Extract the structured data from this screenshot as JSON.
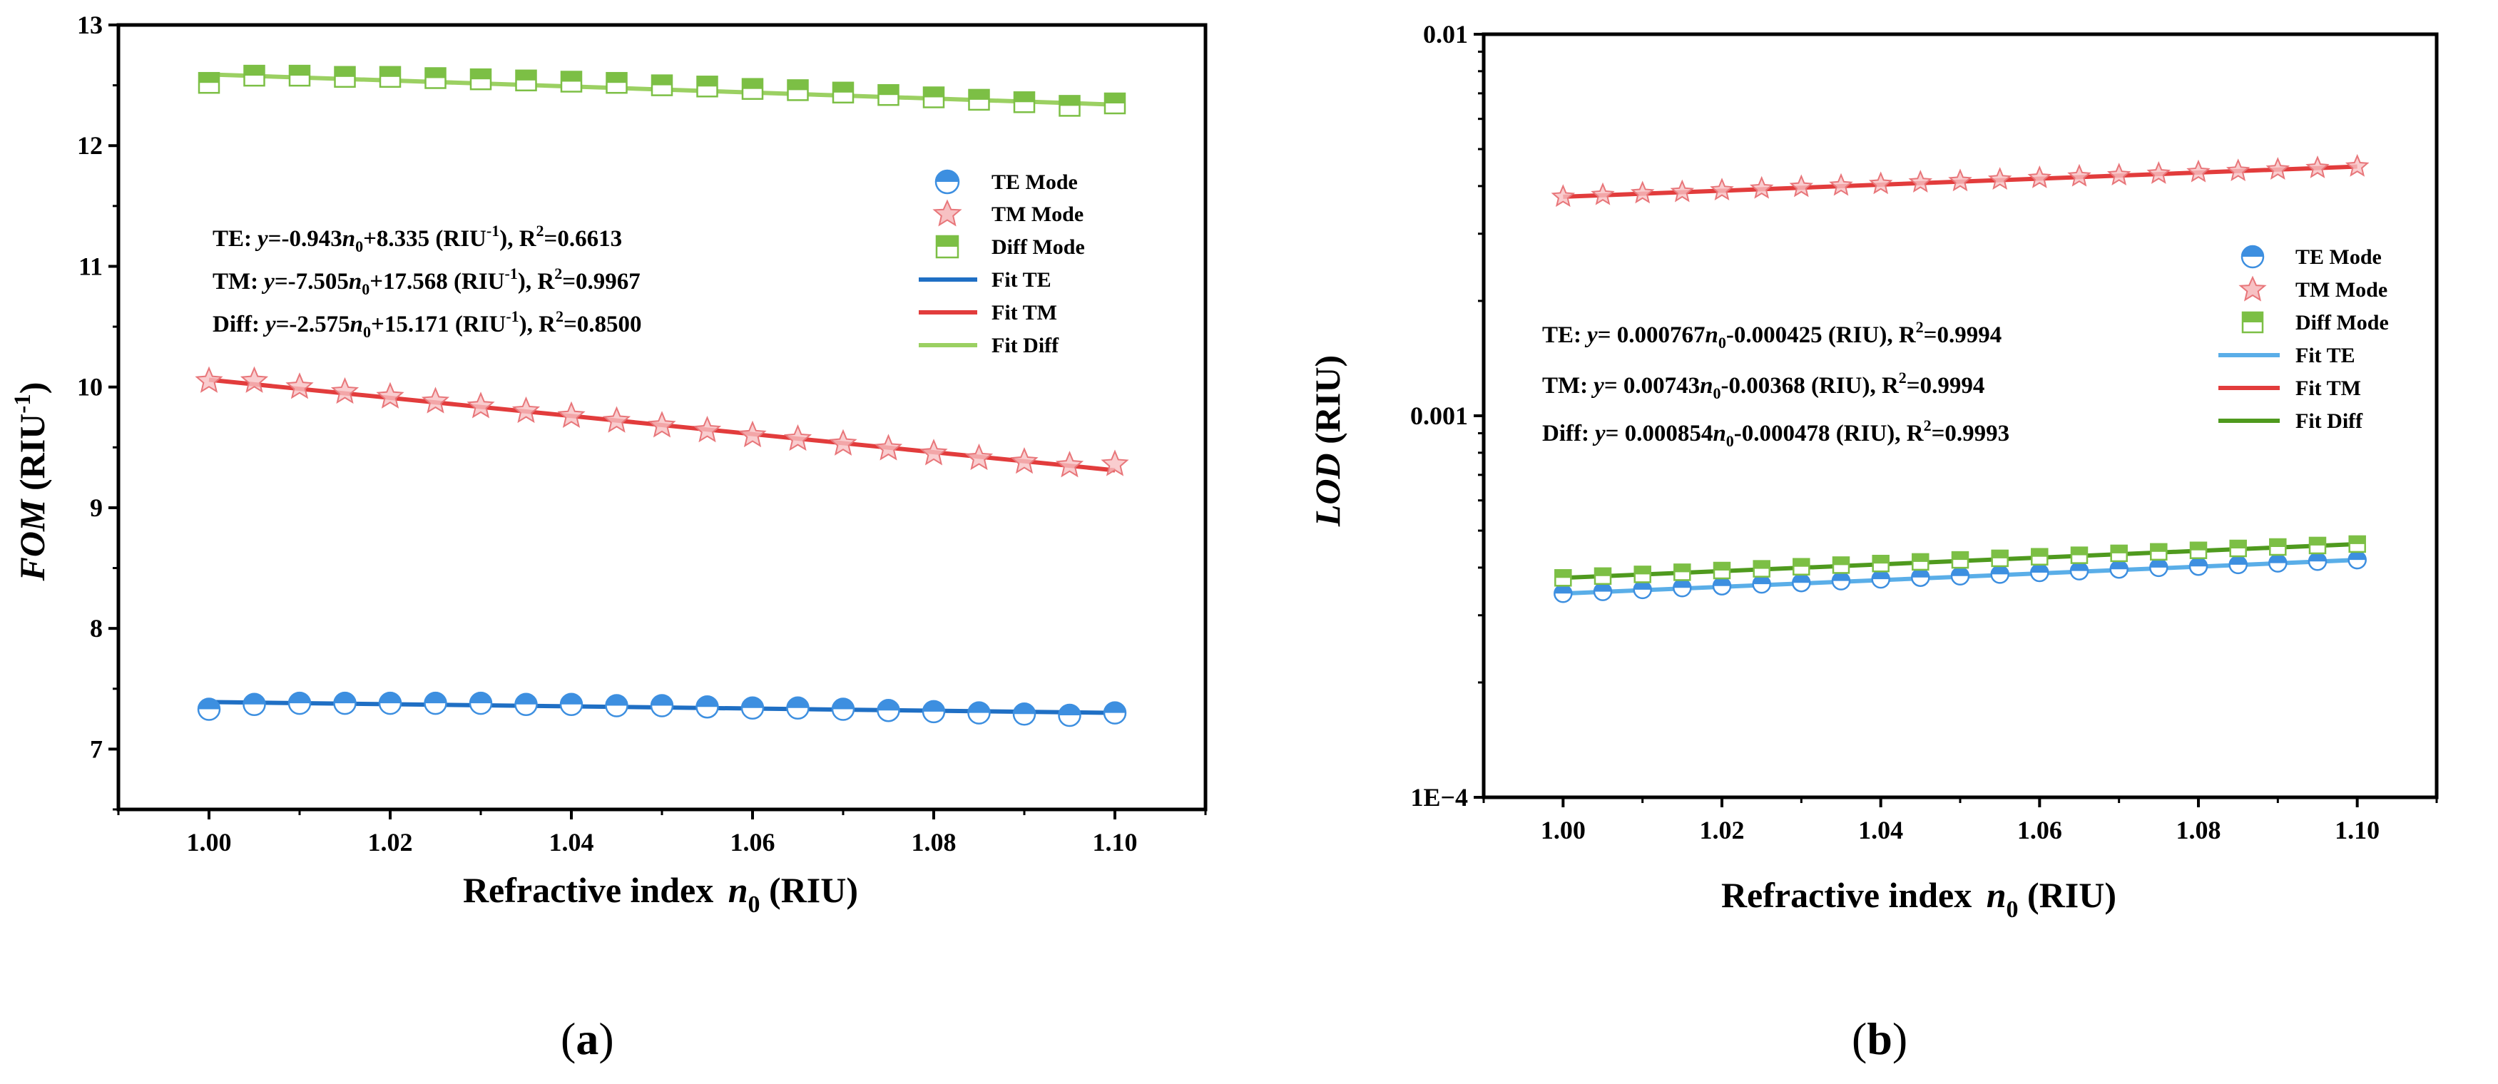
{
  "chart_data": [
    {
      "type": "scatter",
      "panel_label": "(a)",
      "panel_letter": "a",
      "xlabel": {
        "prefix": "Refractive index ",
        "var": "n",
        "sub": "0",
        "suffix": " (RIU)"
      },
      "ylabel": {
        "var": "FOM",
        "unit": " (RIU",
        "sup": "-1",
        "close": ")"
      },
      "xlim": [
        0.99,
        1.11
      ],
      "ylim": [
        6.5,
        13
      ],
      "yscale": "linear",
      "xticks": [
        1.0,
        1.02,
        1.04,
        1.06,
        1.08,
        1.1
      ],
      "xtick_labels": [
        "1.00",
        "1.02",
        "1.04",
        "1.06",
        "1.08",
        "1.10"
      ],
      "yticks": [
        7,
        8,
        9,
        10,
        11,
        12,
        13
      ],
      "ytick_labels": [
        "7",
        "8",
        "9",
        "10",
        "11",
        "12",
        "13"
      ],
      "x": [
        1.0,
        1.005,
        1.01,
        1.015,
        1.02,
        1.025,
        1.03,
        1.035,
        1.04,
        1.045,
        1.05,
        1.055,
        1.06,
        1.065,
        1.07,
        1.075,
        1.08,
        1.085,
        1.09,
        1.095,
        1.1
      ],
      "series": [
        {
          "name": "TE Mode",
          "marker": "circle",
          "color": "#3d8fe0",
          "values": [
            7.33,
            7.37,
            7.38,
            7.38,
            7.38,
            7.38,
            7.38,
            7.37,
            7.37,
            7.36,
            7.36,
            7.35,
            7.34,
            7.34,
            7.33,
            7.32,
            7.31,
            7.3,
            7.29,
            7.28,
            7.3
          ]
        },
        {
          "name": "TM Mode",
          "marker": "star",
          "color": "#e8767a",
          "values": [
            10.05,
            10.05,
            10.0,
            9.96,
            9.92,
            9.88,
            9.84,
            9.8,
            9.76,
            9.72,
            9.68,
            9.64,
            9.6,
            9.57,
            9.53,
            9.49,
            9.45,
            9.41,
            9.38,
            9.35,
            9.36
          ]
        },
        {
          "name": "Diff Mode",
          "marker": "square",
          "color": "#7cbf45",
          "values": [
            12.52,
            12.58,
            12.58,
            12.57,
            12.57,
            12.56,
            12.55,
            12.54,
            12.53,
            12.52,
            12.5,
            12.49,
            12.47,
            12.46,
            12.44,
            12.42,
            12.4,
            12.38,
            12.36,
            12.33,
            12.35
          ]
        }
      ],
      "fits": [
        {
          "name": "Fit TE",
          "color": "#1f6fc4",
          "start": [
            1.0,
            7.39
          ],
          "end": [
            1.1,
            7.3
          ]
        },
        {
          "name": "Fit TM",
          "color": "#e23c3c",
          "start": [
            1.0,
            10.06
          ],
          "end": [
            1.1,
            9.31
          ]
        },
        {
          "name": "Fit Diff",
          "color": "#9bd062",
          "start": [
            1.0,
            12.59
          ],
          "end": [
            1.1,
            12.34
          ]
        }
      ],
      "annotations": [
        {
          "label": "TE:",
          "eq_y": "y",
          "eq1": "=-0.943",
          "eq_n": "n",
          "eq_sub": "0",
          "eq2": "+8.335 (RIU",
          "eq_sup": "-1",
          "eq3": "), R",
          "r_sup": "2",
          "eq4": "=0.6613"
        },
        {
          "label": "TM:",
          "eq_y": "y",
          "eq1": "=-7.505",
          "eq_n": "n",
          "eq_sub": "0",
          "eq2": "+17.568 (RIU",
          "eq_sup": "-1",
          "eq3": "), R",
          "r_sup": "2",
          "eq4": "=0.9967"
        },
        {
          "label": "Diff:",
          "eq_y": "y",
          "eq1": "=-2.575",
          "eq_n": "n",
          "eq_sub": "0",
          "eq2": "+15.171 (RIU",
          "eq_sup": "-1",
          "eq3": "), R",
          "r_sup": "2",
          "eq4": "=0.8500"
        }
      ],
      "legend_position": "upper-right",
      "legend": [
        "TE Mode",
        "TM Mode",
        "Diff Mode",
        "Fit TE",
        "Fit TM",
        "Fit Diff"
      ]
    },
    {
      "type": "scatter",
      "panel_label": "(b)",
      "panel_letter": "b",
      "xlabel": {
        "prefix": "Refractive index ",
        "var": "n",
        "sub": "0",
        "suffix": " (RIU)"
      },
      "ylabel": {
        "var": "LOD",
        "unit": " (RIU)"
      },
      "xlim": [
        0.99,
        1.11
      ],
      "ylim": [
        0.0001,
        0.01
      ],
      "yscale": "log",
      "xticks": [
        1.0,
        1.02,
        1.04,
        1.06,
        1.08,
        1.1
      ],
      "xtick_labels": [
        "1.00",
        "1.02",
        "1.04",
        "1.06",
        "1.08",
        "1.10"
      ],
      "yticks": [
        0.0001,
        0.001,
        0.01
      ],
      "ytick_labels": [
        "1E−4",
        "0.001",
        "0.01"
      ],
      "x": [
        1.0,
        1.005,
        1.01,
        1.015,
        1.02,
        1.025,
        1.03,
        1.035,
        1.04,
        1.045,
        1.05,
        1.055,
        1.06,
        1.065,
        1.07,
        1.075,
        1.08,
        1.085,
        1.09,
        1.095,
        1.1
      ],
      "series": [
        {
          "name": "TE Mode",
          "marker": "circle",
          "color": "#3d8fe0",
          "values": [
            0.000342,
            0.000346,
            0.00035,
            0.000354,
            0.000358,
            0.000362,
            0.000365,
            0.000369,
            0.000373,
            0.000377,
            0.00038,
            0.000384,
            0.000388,
            0.000392,
            0.000396,
            0.0004,
            0.000403,
            0.000407,
            0.000411,
            0.000415,
            0.000419
          ]
        },
        {
          "name": "TM Mode",
          "marker": "star",
          "color": "#e8767a",
          "values": [
            0.00375,
            0.00379,
            0.00383,
            0.00386,
            0.0039,
            0.00394,
            0.00398,
            0.00401,
            0.00405,
            0.00409,
            0.00412,
            0.00416,
            0.0042,
            0.00424,
            0.00427,
            0.00431,
            0.00435,
            0.00438,
            0.00442,
            0.00446,
            0.0045
          ]
        },
        {
          "name": "Diff Mode",
          "marker": "square",
          "color": "#7cbf45",
          "values": [
            0.000376,
            0.00038,
            0.000384,
            0.000389,
            0.000393,
            0.000397,
            0.000402,
            0.000406,
            0.00041,
            0.000414,
            0.000419,
            0.000423,
            0.000427,
            0.000431,
            0.000436,
            0.00044,
            0.000444,
            0.000449,
            0.000453,
            0.000457,
            0.000461
          ]
        }
      ],
      "fits": [
        {
          "name": "Fit TE",
          "color": "#5aaee8",
          "start": [
            1.0,
            0.000342
          ],
          "end": [
            1.1,
            0.000419
          ]
        },
        {
          "name": "Fit TM",
          "color": "#e23c3c",
          "start": [
            1.0,
            0.00375
          ],
          "end": [
            1.1,
            0.0045
          ]
        },
        {
          "name": "Fit Diff",
          "color": "#4f9a1e",
          "start": [
            1.0,
            0.000376
          ],
          "end": [
            1.1,
            0.000461
          ]
        }
      ],
      "annotations": [
        {
          "label": "TE:",
          "eq_y": "y",
          "eq1": "= 0.000767",
          "eq_n": "n",
          "eq_sub": "0",
          "eq2": "-0.000425 (RIU), R",
          "r_sup": "2",
          "eq4": "=0.9994"
        },
        {
          "label": "TM:",
          "eq_y": "y",
          "eq1": "= 0.00743",
          "eq_n": "n",
          "eq_sub": "0",
          "eq2": "-0.00368 (RIU), R",
          "r_sup": "2",
          "eq4": "=0.9994"
        },
        {
          "label": "Diff:",
          "eq_y": "y",
          "eq1": "= 0.000854",
          "eq_n": "n",
          "eq_sub": "0",
          "eq2": "-0.000478 (RIU), R",
          "r_sup": "2",
          "eq4": "=0.9993"
        }
      ],
      "legend_position": "right",
      "legend": [
        "TE Mode",
        "TM Mode",
        "Diff Mode",
        "Fit TE",
        "Fit TM",
        "Fit Diff"
      ]
    }
  ]
}
